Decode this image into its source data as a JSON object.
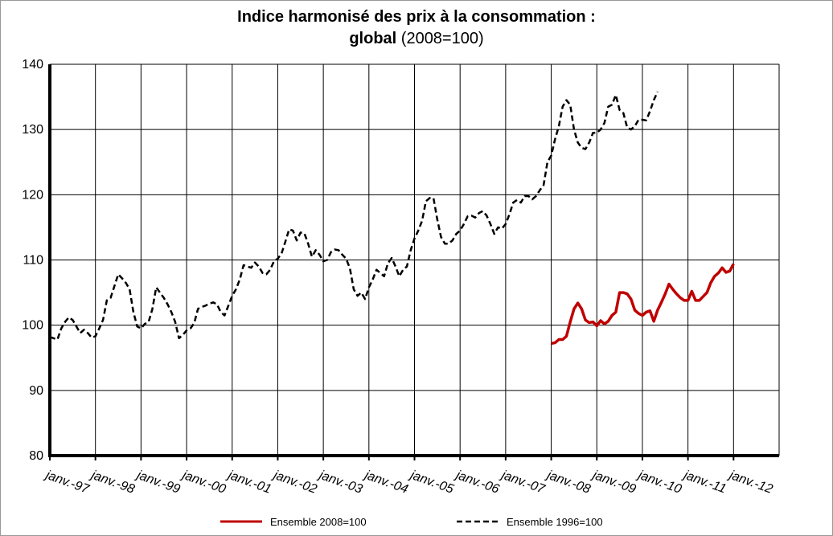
{
  "chart_data": {
    "type": "line",
    "title": "Indice harmonisé des prix à la consommation :",
    "subtitle": "global",
    "subtitle_note": "(2008=100)",
    "categories": [
      "janv.-97",
      null,
      null,
      null,
      null,
      null,
      null,
      null,
      null,
      null,
      null,
      null,
      "janv.-98",
      null,
      null,
      null,
      null,
      null,
      null,
      null,
      null,
      null,
      null,
      null,
      "janv.-99",
      null,
      null,
      null,
      null,
      null,
      null,
      null,
      null,
      null,
      null,
      null,
      "janv.-00",
      null,
      null,
      null,
      null,
      null,
      null,
      null,
      null,
      null,
      null,
      null,
      "janv.-01",
      null,
      null,
      null,
      null,
      null,
      null,
      null,
      null,
      null,
      null,
      null,
      "janv.-02",
      null,
      null,
      null,
      null,
      null,
      null,
      null,
      null,
      null,
      null,
      null,
      "janv.-03",
      null,
      null,
      null,
      null,
      null,
      null,
      null,
      null,
      null,
      null,
      null,
      "janv.-04",
      null,
      null,
      null,
      null,
      null,
      null,
      null,
      null,
      null,
      null,
      null,
      "janv.-05",
      null,
      null,
      null,
      null,
      null,
      null,
      null,
      null,
      null,
      null,
      null,
      "janv.-06",
      null,
      null,
      null,
      null,
      null,
      null,
      null,
      null,
      null,
      null,
      null,
      "janv.-07",
      null,
      null,
      null,
      null,
      null,
      null,
      null,
      null,
      null,
      null,
      null,
      "janv.-08",
      null,
      null,
      null,
      null,
      null,
      null,
      null,
      null,
      null,
      null,
      null,
      "janv.-09",
      null,
      null,
      null,
      null,
      null,
      null,
      null,
      null,
      null,
      null,
      null,
      "janv.-10",
      null,
      null,
      null,
      null,
      null,
      null,
      null,
      null,
      null,
      null,
      null,
      "janv.-11",
      null,
      null,
      null,
      null,
      null,
      null,
      null,
      null,
      null,
      null,
      null,
      "janv.-12",
      null,
      null,
      null,
      null,
      null,
      null,
      null,
      null,
      null,
      null,
      null,
      null
    ],
    "series": [
      {
        "name": "Ensemble 2008=100",
        "color": "#c00000",
        "dashed": false,
        "values": [
          null,
          null,
          null,
          null,
          null,
          null,
          null,
          null,
          null,
          null,
          null,
          null,
          null,
          null,
          null,
          null,
          null,
          null,
          null,
          null,
          null,
          null,
          null,
          null,
          null,
          null,
          null,
          null,
          null,
          null,
          null,
          null,
          null,
          null,
          null,
          null,
          null,
          null,
          null,
          null,
          null,
          null,
          null,
          null,
          null,
          null,
          null,
          null,
          null,
          null,
          null,
          null,
          null,
          null,
          null,
          null,
          null,
          null,
          null,
          null,
          null,
          null,
          null,
          null,
          null,
          null,
          null,
          null,
          null,
          null,
          null,
          null,
          null,
          null,
          null,
          null,
          null,
          null,
          null,
          null,
          null,
          null,
          null,
          null,
          null,
          null,
          null,
          null,
          null,
          null,
          null,
          null,
          null,
          null,
          null,
          null,
          null,
          null,
          null,
          null,
          null,
          null,
          null,
          null,
          null,
          null,
          null,
          null,
          null,
          null,
          null,
          null,
          null,
          null,
          null,
          null,
          null,
          null,
          null,
          null,
          null,
          null,
          null,
          null,
          null,
          null,
          null,
          null,
          null,
          null,
          null,
          null,
          97.2,
          97.3,
          97.8,
          97.8,
          98.3,
          100.5,
          102.5,
          103.4,
          102.5,
          100.8,
          100.4,
          100.5,
          99.9,
          100.7,
          100.2,
          100.6,
          101.5,
          102,
          105,
          105,
          104.8,
          104,
          102.3,
          101.8,
          101.5,
          102,
          102.2,
          100.6,
          102.3,
          103.5,
          104.8,
          106.3,
          105.5,
          104.8,
          104.2,
          103.8,
          103.8,
          105.2,
          103.8,
          103.8,
          104.4,
          105,
          106.5,
          107.5,
          108,
          108.8,
          108.1,
          108.3,
          109.4,
          null,
          null,
          null,
          null,
          null,
          null,
          null,
          null,
          null,
          null,
          null,
          null
        ]
      },
      {
        "name": "Ensemble 1996=100",
        "color": "#000000",
        "dashed": true,
        "values": [
          98.2,
          98,
          97.8,
          99.5,
          100.5,
          101.2,
          100.8,
          99.8,
          98.8,
          99.3,
          98.8,
          98.1,
          98.3,
          99.5,
          100.8,
          103.8,
          104.2,
          106,
          107.8,
          107.2,
          106.5,
          105.5,
          102,
          99.8,
          99.5,
          100.2,
          100.5,
          102.5,
          105.8,
          105,
          104.2,
          103.2,
          102,
          100.5,
          98,
          98.5,
          99.2,
          99.5,
          100.3,
          102.5,
          102.8,
          103,
          103.3,
          103.5,
          103.2,
          102,
          101.5,
          103,
          104.5,
          105.5,
          107,
          109.2,
          109,
          108.8,
          109.6,
          109,
          108,
          107.8,
          108.5,
          109.8,
          110.2,
          111,
          112.8,
          114.7,
          114.5,
          113,
          114.2,
          114.1,
          112.5,
          110.5,
          111.5,
          110.8,
          109.8,
          110,
          111.2,
          111.6,
          111.5,
          110.8,
          110.2,
          108.7,
          105.5,
          104.5,
          105,
          104,
          105.8,
          107,
          108.5,
          108,
          107.5,
          109.5,
          110.3,
          109,
          107.5,
          108.5,
          109,
          111.5,
          113.3,
          114.5,
          116,
          119,
          119.5,
          119.5,
          116.2,
          113.5,
          112.5,
          112.5,
          113,
          114,
          114.5,
          115.5,
          116.7,
          116.8,
          116.5,
          117.2,
          117.5,
          116.8,
          115.5,
          114,
          115,
          114.8,
          115.5,
          117,
          118.8,
          119.2,
          118.8,
          119.8,
          119.8,
          119.3,
          119.8,
          120.7,
          121.5,
          125,
          126,
          128.5,
          130.5,
          133.5,
          134.5,
          133.8,
          130,
          128,
          127.2,
          127,
          128,
          129.5,
          129.5,
          130,
          131,
          133.5,
          133.8,
          135.3,
          133,
          132.5,
          130.3,
          130,
          130.5,
          131.5,
          131.5,
          131.4,
          132.8,
          134.5,
          135.8,
          null,
          null,
          null,
          null,
          null,
          null,
          null,
          null,
          null,
          null,
          null,
          null,
          null,
          null,
          null,
          null,
          null,
          null,
          null,
          null,
          null,
          null,
          null,
          null,
          null,
          null,
          null,
          null,
          null,
          null,
          null,
          null
        ]
      }
    ],
    "ylim": [
      80,
      140
    ],
    "yticks": [
      80,
      90,
      100,
      110,
      120,
      130,
      140
    ],
    "grid": true
  }
}
